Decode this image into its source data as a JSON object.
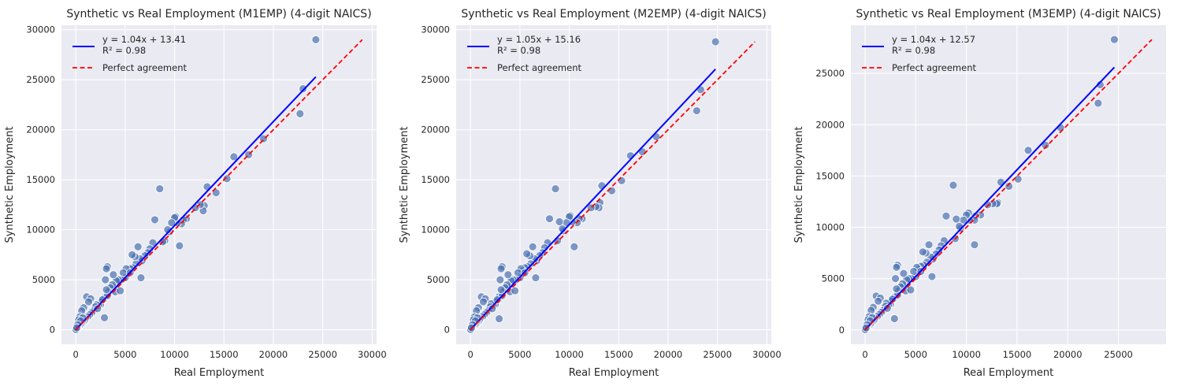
{
  "colors": {
    "background": "#eaeaf2",
    "grid": "#ffffff",
    "points": "#4c72b0",
    "fit": "#0000ff",
    "perfect": "#ff0000"
  },
  "chart_data": [
    {
      "type": "scatter",
      "title": "Synthetic vs Real Employment (M1EMP) (4-digit NAICS)",
      "xlabel": "Real Employment",
      "ylabel": "Synthetic Employment",
      "xlim": [
        -1450,
        30450
      ],
      "ylim": [
        -1450,
        30450
      ],
      "xticks": [
        0,
        5000,
        10000,
        15000,
        20000,
        25000,
        30000
      ],
      "yticks": [
        0,
        5000,
        10000,
        15000,
        20000,
        25000,
        30000
      ],
      "grid": true,
      "legend_location": "upper-left",
      "fit": {
        "label": "y = 1.04x + 13.41",
        "r2_label": "R² = 0.98",
        "slope": 1.04,
        "intercept": 13.41,
        "x_range": [
          0,
          24300
        ]
      },
      "perfect_agreement": {
        "label": "Perfect agreement",
        "range": [
          0,
          29000
        ]
      },
      "points": {
        "x": [
          24300,
          23000,
          22700,
          19000,
          17500,
          16000,
          15300,
          14200,
          13300,
          13000,
          12900,
          12600,
          12100,
          11200,
          10900,
          10700,
          10500,
          10300,
          10100,
          10000,
          9700,
          9500,
          9300,
          9000,
          8800,
          8500,
          8000,
          7800,
          7500,
          7300,
          7000,
          6700,
          6500,
          6300,
          6100,
          6000,
          5800,
          5700,
          5500,
          5300,
          5100,
          5000,
          4800,
          4600,
          4300,
          4100,
          3900,
          3700,
          3500,
          3300,
          3200,
          3100,
          3000,
          2900,
          2800,
          2600,
          2500,
          2300,
          2100,
          2000,
          1800,
          1600,
          1400,
          1200,
          1000,
          900,
          800,
          700,
          600,
          500,
          400,
          300,
          200,
          150,
          100,
          50,
          20,
          3200,
          3100,
          2900,
          4000,
          3800,
          1100,
          800,
          600,
          400,
          300,
          2700,
          6600,
          5500,
          4500,
          2200,
          1500,
          1300,
          700,
          500,
          200,
          100
        ],
        "y": [
          29000,
          24100,
          21600,
          19100,
          17500,
          17300,
          15100,
          13700,
          14300,
          12400,
          11900,
          12500,
          12200,
          11100,
          11000,
          10600,
          8400,
          10700,
          11300,
          11200,
          10700,
          9800,
          10000,
          8900,
          8800,
          14100,
          11000,
          8700,
          8100,
          7700,
          7400,
          6900,
          7100,
          8300,
          6600,
          7300,
          6200,
          7500,
          6100,
          5800,
          6100,
          5200,
          5700,
          5000,
          5000,
          4900,
          4300,
          4500,
          4200,
          3800,
          6300,
          6100,
          5000,
          3200,
          3000,
          2800,
          2500,
          2400,
          2500,
          2300,
          1900,
          1700,
          1500,
          1300,
          1100,
          900,
          800,
          700,
          600,
          500,
          400,
          300,
          200,
          150,
          100,
          60,
          30,
          3400,
          4000,
          1200,
          3800,
          5500,
          3300,
          2200,
          1900,
          1300,
          1000,
          3000,
          5200,
          5700,
          3900,
          2100,
          3100,
          2800,
          1200,
          900,
          500,
          200
        ]
      }
    },
    {
      "type": "scatter",
      "title": "Synthetic vs Real Employment (M2EMP) (4-digit NAICS)",
      "xlabel": "Real Employment",
      "ylabel": "Synthetic Employment",
      "xlim": [
        -1450,
        30450
      ],
      "ylim": [
        -1450,
        30450
      ],
      "xticks": [
        0,
        5000,
        10000,
        15000,
        20000,
        25000,
        30000
      ],
      "yticks": [
        0,
        5000,
        10000,
        15000,
        20000,
        25000,
        30000
      ],
      "grid": true,
      "legend_location": "upper-left",
      "fit": {
        "label": "y = 1.05x + 15.16",
        "r2_label": "R² = 0.98",
        "slope": 1.05,
        "intercept": 15.16,
        "x_range": [
          0,
          24800
        ]
      },
      "perfect_agreement": {
        "label": "Perfect agreement",
        "range": [
          0,
          28800
        ]
      },
      "points": {
        "x": [
          24800,
          23300,
          22900,
          18800,
          17400,
          16200,
          15300,
          14300,
          13300,
          13100,
          13000,
          12700,
          12200,
          11300,
          11000,
          10800,
          10500,
          10300,
          10100,
          10000,
          9700,
          9400,
          9300,
          9000,
          8800,
          8600,
          8000,
          7800,
          7500,
          7300,
          7000,
          6700,
          6500,
          6300,
          6100,
          6000,
          5800,
          5700,
          5500,
          5300,
          5100,
          5000,
          4800,
          4600,
          4300,
          4100,
          3900,
          3700,
          3500,
          3300,
          3200,
          3100,
          3000,
          2900,
          2800,
          2600,
          2500,
          2300,
          2100,
          2000,
          1800,
          1600,
          1400,
          1200,
          1000,
          900,
          800,
          700,
          600,
          500,
          400,
          300,
          200,
          150,
          100,
          50,
          20,
          3200,
          3100,
          2900,
          4000,
          3800,
          1100,
          800,
          600,
          400,
          300,
          2700,
          6600,
          5500,
          4500,
          2200,
          1500,
          1300,
          700,
          500,
          200,
          100
        ],
        "y": [
          28800,
          24000,
          21900,
          19300,
          17800,
          17400,
          14900,
          13900,
          14400,
          12700,
          12200,
          12300,
          12200,
          11100,
          11100,
          10700,
          8300,
          10800,
          11400,
          11300,
          10700,
          9900,
          10100,
          10800,
          8900,
          14100,
          11100,
          8700,
          8200,
          7700,
          7400,
          6900,
          7100,
          8300,
          6600,
          7400,
          6300,
          7600,
          6200,
          5900,
          6100,
          5200,
          5700,
          5000,
          5000,
          4900,
          4300,
          4500,
          4200,
          3800,
          6300,
          6100,
          5000,
          3300,
          3000,
          2800,
          2500,
          2400,
          2600,
          2300,
          1900,
          1700,
          1500,
          1300,
          1100,
          900,
          800,
          700,
          600,
          500,
          400,
          300,
          200,
          150,
          100,
          60,
          30,
          3400,
          4000,
          1100,
          3800,
          5500,
          3300,
          2200,
          1900,
          1300,
          1000,
          3000,
          5200,
          5700,
          3900,
          2100,
          3100,
          2800,
          1200,
          900,
          500,
          200
        ]
      }
    },
    {
      "type": "scatter",
      "title": "Synthetic vs Real Employment (M3EMP) (4-digit NAICS)",
      "xlabel": "Real Employment",
      "ylabel": "Synthetic Employment",
      "xlim": [
        -1400,
        29700
      ],
      "ylim": [
        -1400,
        29700
      ],
      "xticks": [
        0,
        5000,
        10000,
        15000,
        20000,
        25000
      ],
      "yticks": [
        0,
        5000,
        10000,
        15000,
        20000,
        25000
      ],
      "grid": true,
      "legend_location": "upper-left",
      "fit": {
        "label": "y = 1.04x + 12.57",
        "r2_label": "R² = 0.98",
        "slope": 1.04,
        "intercept": 12.57,
        "x_range": [
          0,
          24600
        ]
      },
      "perfect_agreement": {
        "label": "Perfect agreement",
        "range": [
          0,
          28300
        ]
      },
      "points": {
        "x": [
          24600,
          23200,
          23000,
          19300,
          17800,
          16100,
          15100,
          14200,
          13400,
          13100,
          13000,
          12600,
          12100,
          11400,
          10900,
          10800,
          10800,
          10300,
          10200,
          10000,
          9700,
          9400,
          9300,
          9000,
          8900,
          8700,
          8000,
          7800,
          7500,
          7300,
          7000,
          6700,
          6500,
          6300,
          6100,
          6000,
          5800,
          5700,
          5500,
          5300,
          5100,
          5000,
          4800,
          4600,
          4300,
          4100,
          3900,
          3700,
          3500,
          3300,
          3200,
          3100,
          3000,
          2900,
          2800,
          2600,
          2500,
          2300,
          2100,
          2000,
          1800,
          1600,
          1400,
          1200,
          1000,
          900,
          800,
          700,
          600,
          500,
          400,
          300,
          200,
          150,
          100,
          50,
          20,
          3200,
          3100,
          2900,
          4000,
          3800,
          1100,
          800,
          600,
          400,
          300,
          2700,
          6600,
          5500,
          4500,
          2200,
          1500,
          1300,
          700,
          500,
          200,
          100
        ],
        "y": [
          28300,
          23900,
          22100,
          19700,
          18000,
          17500,
          14700,
          14000,
          14400,
          12400,
          12300,
          12300,
          12200,
          11200,
          11100,
          10700,
          8300,
          10700,
          11400,
          11200,
          10700,
          9900,
          10100,
          10800,
          8900,
          14100,
          11100,
          8700,
          8200,
          7800,
          7400,
          6900,
          7100,
          8300,
          6600,
          7500,
          6300,
          7600,
          6200,
          5900,
          6100,
          5200,
          5700,
          5000,
          5000,
          4900,
          4300,
          4500,
          4200,
          3800,
          6300,
          6100,
          5000,
          3200,
          3000,
          2800,
          2500,
          2400,
          2600,
          2300,
          1900,
          1700,
          1500,
          1300,
          1100,
          900,
          800,
          700,
          600,
          500,
          400,
          300,
          200,
          150,
          100,
          60,
          30,
          3400,
          4000,
          1100,
          3800,
          5500,
          3300,
          2200,
          1900,
          1300,
          1000,
          3000,
          5200,
          5700,
          3900,
          2100,
          3100,
          2800,
          1200,
          900,
          500,
          200
        ]
      }
    }
  ]
}
